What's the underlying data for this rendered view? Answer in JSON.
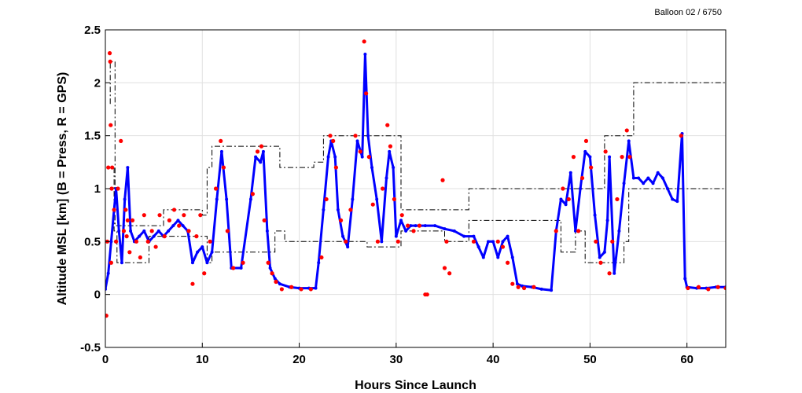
{
  "header": {
    "corner_label": "Balloon 02 / 6750"
  },
  "chart_data": {
    "type": "line",
    "title": "",
    "xlabel": "Hours Since Launch",
    "ylabel": "Altitude MSL [km]   (B = Press, R = GPS)",
    "xlim": [
      0,
      64
    ],
    "ylim": [
      -0.5,
      2.5
    ],
    "x_ticks": [
      0,
      10,
      20,
      30,
      40,
      50,
      60
    ],
    "x_tick_labels": [
      "0",
      "10",
      "20",
      "30",
      "40",
      "50",
      "60"
    ],
    "y_ticks": [
      -0.5,
      0,
      0.5,
      1,
      1.5,
      2,
      2.5
    ],
    "y_tick_labels": [
      "-0.5",
      "0",
      "0.5",
      "1",
      "1.5",
      "2",
      "2.5"
    ],
    "grid": true,
    "colors": {
      "pressure": "#0000ff",
      "gps": "#ff0000",
      "limits": "#000000"
    },
    "series": [
      {
        "id": "pressure",
        "style": "line-with-points",
        "x": [
          0,
          0.3,
          0.6,
          0.9,
          1.1,
          1.4,
          1.7,
          2.0,
          2.3,
          2.6,
          3.0,
          3.5,
          4.0,
          4.5,
          5.0,
          5.5,
          6.0,
          6.5,
          7.0,
          7.5,
          8.0,
          8.5,
          9.0,
          9.5,
          10.0,
          10.5,
          11.0,
          11.5,
          12.0,
          12.5,
          13.0,
          14.0,
          15.0,
          15.5,
          16.0,
          16.3,
          16.7,
          17.0,
          17.5,
          18.0,
          19.0,
          20.0,
          21.0,
          21.7,
          22.0,
          22.5,
          23.0,
          23.3,
          23.7,
          24.0,
          24.5,
          25.0,
          25.5,
          26.0,
          26.5,
          26.8,
          27.1,
          27.5,
          28.0,
          28.5,
          29.0,
          29.3,
          29.7,
          30.0,
          30.5,
          31.0,
          31.5,
          32.0,
          33.0,
          34.0,
          35.0,
          36.0,
          37.0,
          38.0,
          38.5,
          39.0,
          39.5,
          40.0,
          40.5,
          41.0,
          41.5,
          42.0,
          42.5,
          43.0,
          44.0,
          45.0,
          46.0,
          46.5,
          47.0,
          47.5,
          48.0,
          48.5,
          49.0,
          49.5,
          50.0,
          50.5,
          51.0,
          51.5,
          51.8,
          52.0,
          52.5,
          53.0,
          53.5,
          54.0,
          54.5,
          55.0,
          55.5,
          56.0,
          56.5,
          57.0,
          57.5,
          58.0,
          58.5,
          59.0,
          59.5,
          59.8,
          60.0,
          61.0,
          62.0,
          63.0,
          64.0
        ],
        "y": [
          0.05,
          0.2,
          0.5,
          0.8,
          1.0,
          0.6,
          0.3,
          0.9,
          1.2,
          0.6,
          0.5,
          0.55,
          0.6,
          0.5,
          0.55,
          0.6,
          0.55,
          0.6,
          0.65,
          0.7,
          0.65,
          0.6,
          0.3,
          0.4,
          0.45,
          0.3,
          0.4,
          0.9,
          1.35,
          0.9,
          0.25,
          0.25,
          0.9,
          1.3,
          1.25,
          1.35,
          0.6,
          0.25,
          0.15,
          0.1,
          0.07,
          0.06,
          0.06,
          0.06,
          0.3,
          0.8,
          1.3,
          1.45,
          1.3,
          0.8,
          0.55,
          0.45,
          0.9,
          1.45,
          1.3,
          2.27,
          1.5,
          1.2,
          0.9,
          0.5,
          1.1,
          1.35,
          1.2,
          0.55,
          0.7,
          0.6,
          0.65,
          0.65,
          0.65,
          0.65,
          0.62,
          0.6,
          0.55,
          0.55,
          0.45,
          0.35,
          0.5,
          0.5,
          0.35,
          0.5,
          0.55,
          0.35,
          0.1,
          0.08,
          0.07,
          0.05,
          0.04,
          0.6,
          0.9,
          0.85,
          1.15,
          0.6,
          1.0,
          1.35,
          1.3,
          0.75,
          0.35,
          0.4,
          0.7,
          1.3,
          0.2,
          0.6,
          1.05,
          1.45,
          1.1,
          1.1,
          1.05,
          1.1,
          1.05,
          1.15,
          1.1,
          1.0,
          0.9,
          0.88,
          1.52,
          0.15,
          0.07,
          0.06,
          0.06,
          0.07,
          0.07
        ]
      },
      {
        "id": "gps",
        "style": "points",
        "x": [
          0.1,
          0.2,
          0.3,
          0.45,
          0.5,
          0.55,
          0.6,
          0.65,
          0.7,
          0.9,
          1.1,
          1.3,
          1.6,
          1.9,
          2.1,
          2.2,
          2.3,
          2.5,
          2.8,
          3.2,
          3.6,
          4.0,
          4.4,
          4.8,
          5.2,
          5.6,
          6.1,
          6.6,
          7.1,
          7.6,
          8.1,
          8.6,
          9.0,
          9.4,
          9.8,
          10.2,
          10.8,
          11.4,
          11.9,
          12.2,
          12.6,
          13.2,
          14.2,
          15.2,
          15.7,
          16.1,
          16.4,
          16.8,
          17.2,
          17.6,
          18.2,
          19.2,
          20.2,
          21.2,
          22.3,
          22.8,
          23.2,
          23.5,
          23.8,
          24.3,
          24.8,
          25.3,
          25.8,
          26.3,
          26.7,
          26.9,
          27.2,
          27.6,
          28.1,
          28.6,
          29.1,
          29.4,
          29.8,
          30.2,
          30.6,
          31.2,
          31.8,
          32.4,
          33.0,
          33.2,
          34.8,
          35.0,
          35.2,
          35.5,
          38.0,
          40.5,
          41.0,
          41.5,
          42.0,
          42.6,
          43.2,
          44.2,
          46.5,
          47.2,
          47.8,
          48.3,
          48.8,
          49.2,
          49.6,
          50.1,
          50.6,
          51.1,
          51.6,
          52.0,
          52.3,
          52.8,
          53.3,
          53.8,
          54.1,
          59.4,
          60.1,
          61.2,
          62.2,
          63.2,
          64.0
        ],
        "y": [
          -0.2,
          0.5,
          1.2,
          2.28,
          2.2,
          1.6,
          0.3,
          1.0,
          1.2,
          0.8,
          0.5,
          1.0,
          1.45,
          0.6,
          0.8,
          0.55,
          0.7,
          0.4,
          0.7,
          0.5,
          0.35,
          0.75,
          0.5,
          0.6,
          0.45,
          0.75,
          0.55,
          0.7,
          0.8,
          0.65,
          0.75,
          0.6,
          0.1,
          0.55,
          0.75,
          0.2,
          0.5,
          1.0,
          1.45,
          1.2,
          0.6,
          0.25,
          0.3,
          0.95,
          1.35,
          1.4,
          0.7,
          0.3,
          0.2,
          0.12,
          0.05,
          0.07,
          0.05,
          0.05,
          0.35,
          0.9,
          1.5,
          1.45,
          1.2,
          0.7,
          0.5,
          0.8,
          1.5,
          1.35,
          2.39,
          1.9,
          1.3,
          0.85,
          0.5,
          1.0,
          1.6,
          1.4,
          0.9,
          0.5,
          0.75,
          0.65,
          0.6,
          0.65,
          0.0,
          0.0,
          1.08,
          0.25,
          0.5,
          0.2,
          0.5,
          0.5,
          0.45,
          0.3,
          0.1,
          0.07,
          0.06,
          0.07,
          0.6,
          1.0,
          0.9,
          1.3,
          0.6,
          1.1,
          1.45,
          1.2,
          0.5,
          0.3,
          1.35,
          0.2,
          0.5,
          0.9,
          1.3,
          1.55,
          1.3,
          1.5,
          0.06,
          0.07,
          0.05,
          0.07,
          0.06
        ]
      },
      {
        "id": "limits-upper",
        "style": "dash-dot",
        "x": [
          0.5,
          0.5,
          1.0,
          1.0,
          6.0,
          6.0,
          10.0,
          10.0,
          10.5,
          10.5,
          11.0,
          11.0,
          18.0,
          18.0,
          21.5,
          21.5,
          22.5,
          22.5,
          30.5,
          30.5,
          37.5,
          37.5,
          51.5,
          51.5,
          54.5,
          54.5,
          64.0
        ],
        "y": [
          1.8,
          2.2,
          2.2,
          0.65,
          0.65,
          0.8,
          0.8,
          0.75,
          0.75,
          1.2,
          1.2,
          1.4,
          1.4,
          1.2,
          1.2,
          1.25,
          1.25,
          1.5,
          1.5,
          0.8,
          0.8,
          1.0,
          1.0,
          1.5,
          1.5,
          2.0,
          2.0
        ]
      },
      {
        "id": "limits-lower",
        "style": "dash-dot",
        "x": [
          0.9,
          0.9,
          1.2,
          1.2,
          4.5,
          4.5,
          10.5,
          10.5,
          11.0,
          11.0,
          17.5,
          17.5,
          18.5,
          18.5,
          19.0,
          19.0,
          27.0,
          27.0,
          30.5,
          30.5,
          35.0,
          35.0,
          37.5,
          37.5,
          47.0,
          47.0,
          48.5,
          48.5,
          49.5,
          49.5,
          53.5,
          53.5,
          54.0,
          54.0,
          64.0
        ],
        "y": [
          1.2,
          0.6,
          0.6,
          0.3,
          0.3,
          0.55,
          0.55,
          0.3,
          0.3,
          0.4,
          0.4,
          0.6,
          0.6,
          0.5,
          0.5,
          0.5,
          0.5,
          0.45,
          0.45,
          0.6,
          0.6,
          0.5,
          0.5,
          0.7,
          0.7,
          0.4,
          0.4,
          0.6,
          0.6,
          0.3,
          0.3,
          0.5,
          0.5,
          1.0,
          1.0
        ]
      }
    ]
  }
}
